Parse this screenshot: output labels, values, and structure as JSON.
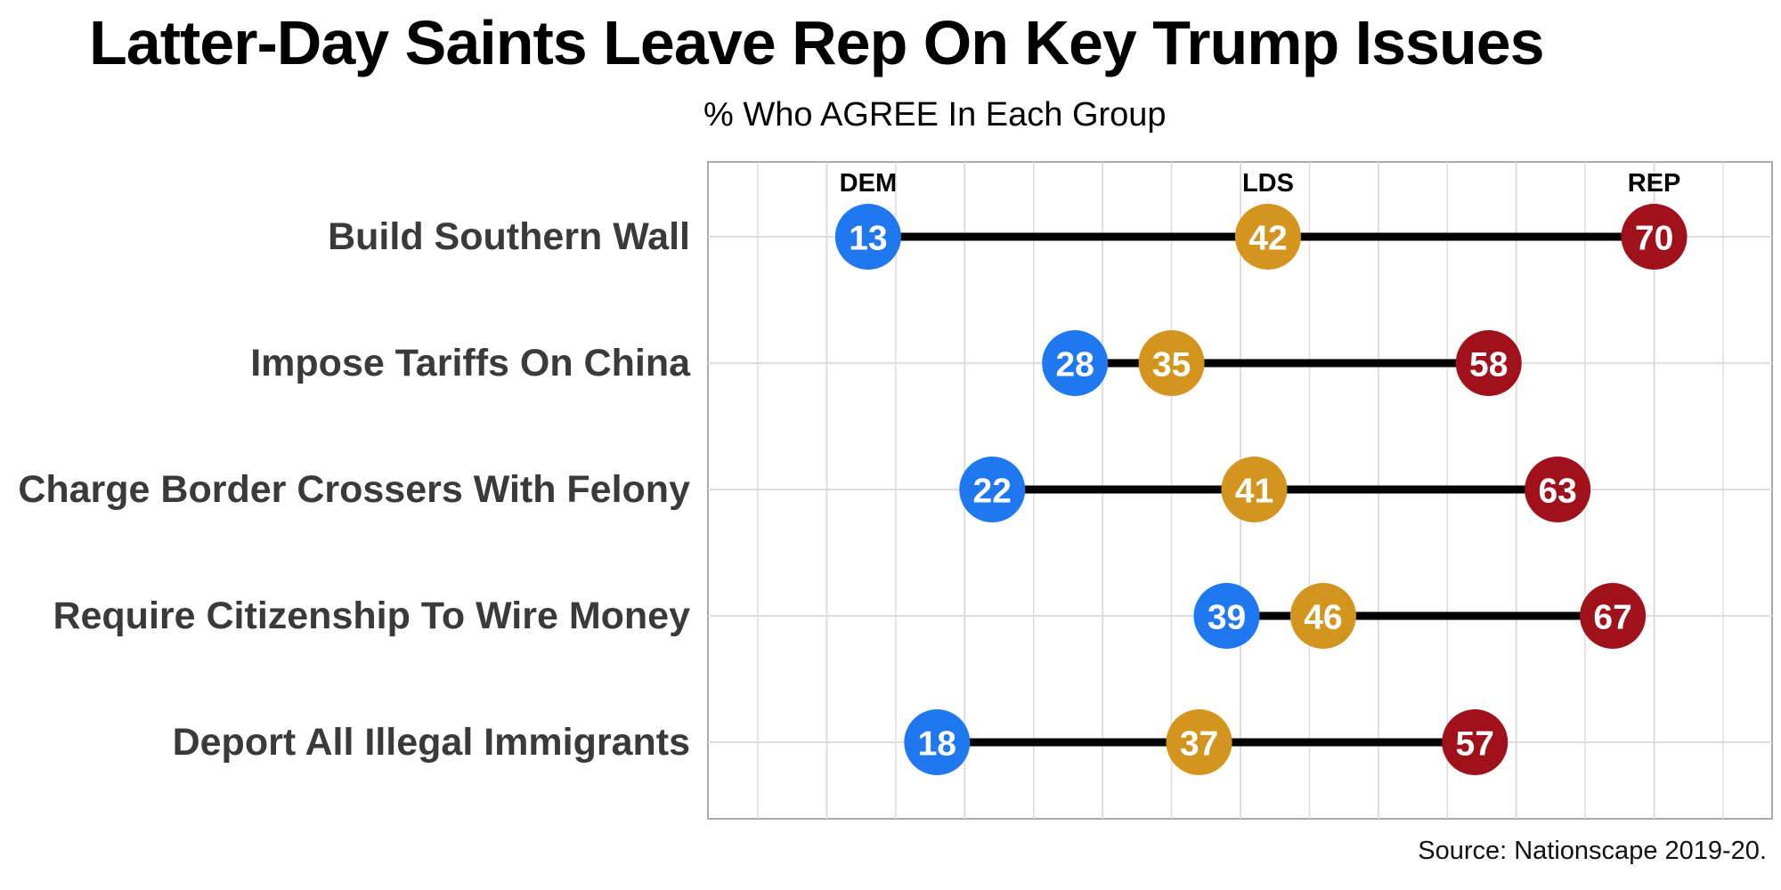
{
  "title": "Latter-Day Saints Leave Rep On Key Trump Issues",
  "subtitle": "% Who AGREE In Each Group",
  "source": "Source: Nationscape 2019-20.",
  "colors": {
    "DEM": "#1f78f0",
    "LDS": "#d4951f",
    "REP": "#a0111b",
    "segment": "#000000",
    "grid": "#dddddd",
    "frame": "#aaaaaa"
  },
  "chart_data": {
    "type": "dumbbell",
    "title": "Latter-Day Saints Leave Rep On Key Trump Issues",
    "subtitle": "% Who AGREE In Each Group",
    "xlim": [
      5,
      75
    ],
    "grid": true,
    "group_labels": [
      "DEM",
      "LDS",
      "REP"
    ],
    "categories": [
      "Build Southern Wall",
      "Impose Tariffs On China",
      "Charge Border Crossers With Felony",
      "Require Citizenship To Wire Money",
      "Deport All Illegal Immigrants"
    ],
    "series": [
      {
        "name": "DEM",
        "values": [
          13,
          28,
          22,
          39,
          18
        ]
      },
      {
        "name": "LDS",
        "values": [
          42,
          35,
          41,
          46,
          37
        ]
      },
      {
        "name": "REP",
        "values": [
          70,
          58,
          63,
          67,
          57
        ]
      }
    ]
  }
}
